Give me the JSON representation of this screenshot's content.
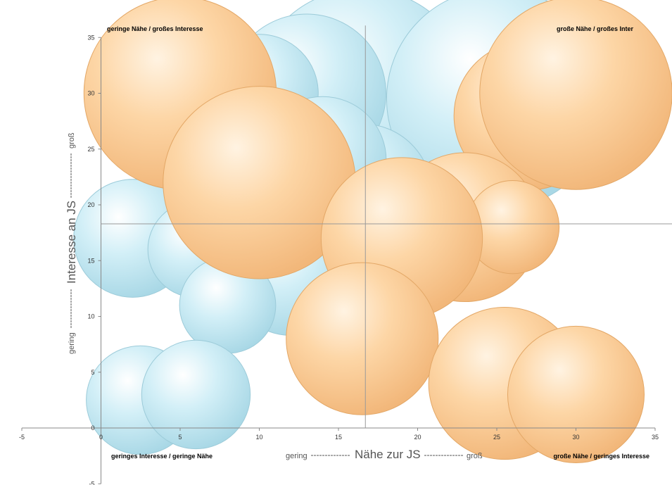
{
  "chart_data": {
    "type": "bubble",
    "xlim": [
      -5,
      35
    ],
    "ylim": [
      -5,
      35
    ],
    "x_ticks": [
      -5,
      0,
      5,
      10,
      15,
      20,
      25,
      30,
      35
    ],
    "y_ticks": [
      -5,
      0,
      5,
      10,
      15,
      20,
      25,
      30,
      35
    ],
    "xlabel": {
      "low": "gering",
      "title": "Nähe zur JS",
      "high": "groß"
    },
    "ylabel": {
      "low": "gering",
      "title": "Interesse an JS",
      "high": "groß"
    },
    "quadrant_labels": {
      "top_left": "geringe Nähe / großes Interesse",
      "top_right": "große Nähe / großes Inter",
      "bottom_left": "geringes Interesse / geringe Nähe",
      "bottom_right": "große Nähe / geringes Interesse"
    },
    "divider": {
      "x": 16.7,
      "y": 18.3
    },
    "grid": false,
    "colors": {
      "blue": "#bfe6f0",
      "orange": "#fcd09c"
    },
    "series": [
      {
        "color_key": "blue",
        "points": [
          {
            "x": 16.5,
            "y": 29.5,
            "size": 7.1
          },
          {
            "x": 25,
            "y": 29.5,
            "size": 7.1
          },
          {
            "x": 13,
            "y": 30,
            "size": 5.1
          },
          {
            "x": 10,
            "y": 30,
            "size": 3.8
          },
          {
            "x": 16.5,
            "y": 21,
            "size": 4.5
          },
          {
            "x": 14,
            "y": 24,
            "size": 4.1
          },
          {
            "x": 2,
            "y": 17,
            "size": 3.8
          },
          {
            "x": 6,
            "y": 16,
            "size": 3.1
          },
          {
            "x": 12,
            "y": 14,
            "size": 4.1
          },
          {
            "x": 8,
            "y": 11,
            "size": 3.1
          },
          {
            "x": 2.5,
            "y": 2.5,
            "size": 3.5
          },
          {
            "x": 6,
            "y": 3,
            "size": 3.5
          }
        ]
      },
      {
        "color_key": "orange",
        "points": [
          {
            "x": 5,
            "y": 30,
            "size": 6.2
          },
          {
            "x": 27,
            "y": 28,
            "size": 4.8
          },
          {
            "x": 30,
            "y": 30,
            "size": 6.2
          },
          {
            "x": 10,
            "y": 22,
            "size": 6.2
          },
          {
            "x": 23,
            "y": 18,
            "size": 4.8
          },
          {
            "x": 26,
            "y": 18,
            "size": 3.0
          },
          {
            "x": 19,
            "y": 17,
            "size": 5.2
          },
          {
            "x": 16.5,
            "y": 8,
            "size": 4.9
          },
          {
            "x": 25.5,
            "y": 4,
            "size": 4.9
          },
          {
            "x": 30,
            "y": 3,
            "size": 4.4
          }
        ]
      }
    ]
  }
}
